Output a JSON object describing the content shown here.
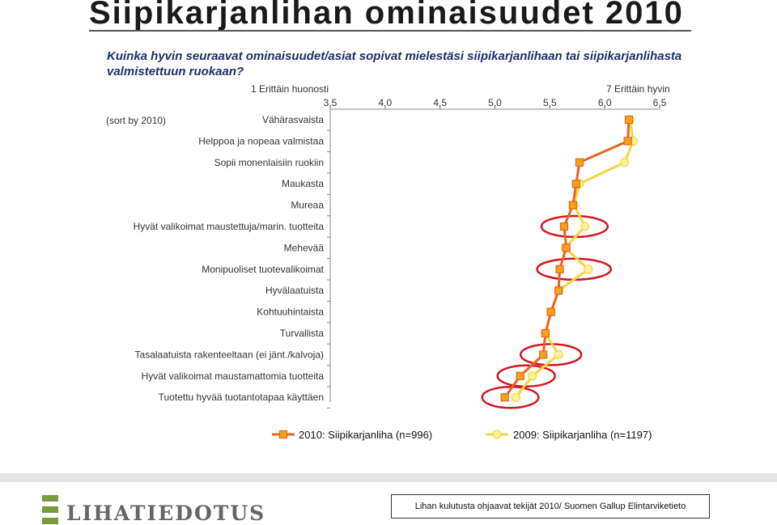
{
  "title": "Siipikarjanlihan ominaisuudet 2010",
  "question": "Kuinka hyvin seuraavat ominaisuudet/asiat sopivat mielestäsi siipikarjanlihaan tai siipikarjanlihasta valmistettuun ruokaan?",
  "scale_min_label": "1 Erittäin huonosti",
  "scale_max_label": "7 Erittäin hyvin",
  "sort_note": "(sort by 2010)",
  "colors": {
    "line_2010": "#e8641e",
    "marker_2010_fill": "#f7a21b",
    "line_2009": "#f5d63b",
    "marker_2009_fill": "#fdf39a",
    "highlight_ring": "#d2161e",
    "axis": "#888888"
  },
  "chart_data": {
    "type": "line",
    "orientation": "horizontal",
    "categories": [
      "Vähärasvaista",
      "Helppoa ja nopeaa valmistaa",
      "Sopii monenlaisiin ruokiin",
      "Maukasta",
      "Mureaa",
      "Hyvät valikoimat maustettuja/marin. tuotteita",
      "Mehevää",
      "Monipuoliset tuotevalikoimat",
      "Hyvälaatuista",
      "Kohtuuhintaista",
      "Turvallista",
      "Tasalaatuista rakenteeltaan (ei jänt./kalvoja)",
      "Hyvät valikoimat maustamattomia tuotteita",
      "Tuotettu hyvää tuotantotapaa käyttäen"
    ],
    "xlim": [
      3.5,
      6.5
    ],
    "xticks": [
      "3,5",
      "4,0",
      "4,5",
      "5,0",
      "5,5",
      "6,0",
      "6,5"
    ],
    "xtick_values": [
      3.5,
      4.0,
      4.5,
      5.0,
      5.5,
      6.0,
      6.5
    ],
    "series": [
      {
        "name": "2010: Siipikarjanliha (n=996)",
        "values": [
          6.22,
          6.21,
          5.77,
          5.74,
          5.71,
          5.63,
          5.65,
          5.59,
          5.58,
          5.51,
          5.46,
          5.44,
          5.23,
          5.09
        ]
      },
      {
        "name": "2009: Siipikarjanliha (n=1197)",
        "values": [
          6.23,
          6.26,
          6.18,
          5.77,
          5.72,
          5.82,
          5.64,
          5.85,
          5.58,
          5.51,
          5.46,
          5.58,
          5.34,
          5.19
        ]
      }
    ],
    "highlighted_categories": [
      "Hyvät valikoimat maustettuja/marin. tuotteita",
      "Monipuoliset tuotevalikoimat",
      "Tasalaatuista rakenteeltaan (ei jänt./kalvoja)",
      "Hyvät valikoimat maustamattomia tuotteita",
      "Tuotettu hyvää tuotantotapaa käyttäen"
    ],
    "legend": "bottom",
    "grid": false
  },
  "footer": {
    "logo_text": "LIHATIEDOTUS",
    "source": "Lihan kulutusta ohjaavat tekijät 2010/ Suomen Gallup Elintarviketieto"
  }
}
